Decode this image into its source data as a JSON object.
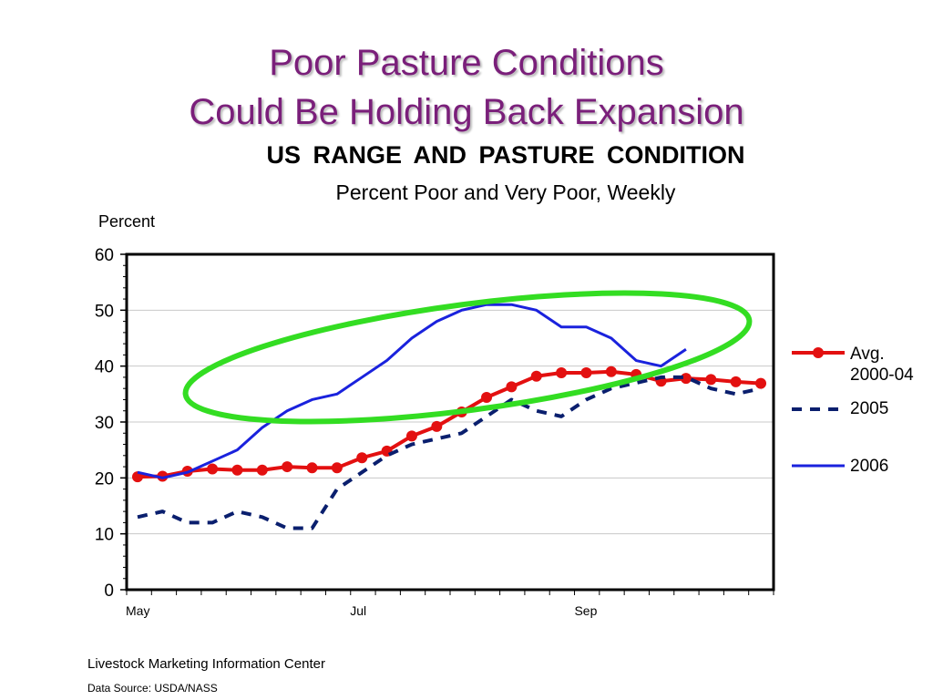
{
  "slide": {
    "title_line1": "Poor Pasture Conditions",
    "title_line2": "Could Be Holding Back Expansion"
  },
  "footer": {
    "source_org": "Livestock Marketing Information Center",
    "data_source": "Data Source:  USDA/NASS"
  },
  "chart_data": {
    "type": "line",
    "title": "US  RANGE  AND  PASTURE  CONDITION",
    "subtitle": "Percent Poor and Very Poor, Weekly",
    "ylabel": "Percent",
    "ylim": [
      0,
      60
    ],
    "yticks": [
      "0",
      "10",
      "20",
      "30",
      "40",
      "50",
      "60"
    ],
    "x_tick_labels": [
      {
        "label": "May",
        "week": 0
      },
      {
        "label": "Jul",
        "week": 9
      },
      {
        "label": "Sep",
        "week": 18
      }
    ],
    "num_weeks": 26,
    "grid": true,
    "legend_position": "right",
    "highlight_ellipse_color": "#33dd22",
    "series": [
      {
        "name": "Avg.\n2000-04",
        "color": "#e31010",
        "style": "solid-markers",
        "values": [
          20.2,
          20.3,
          21.2,
          21.6,
          21.4,
          21.4,
          22.0,
          21.8,
          21.8,
          23.6,
          24.8,
          27.5,
          29.2,
          31.8,
          34.4,
          36.3,
          38.2,
          38.8,
          38.8,
          39.0,
          38.5,
          37.3,
          37.8,
          37.6,
          37.2,
          36.9
        ]
      },
      {
        "name": "2005",
        "color": "#0a1f6e",
        "style": "dashed",
        "values": [
          13,
          14,
          12,
          12,
          14,
          13,
          11,
          11,
          18,
          21,
          24,
          26,
          27,
          28,
          31,
          34,
          32,
          31,
          34,
          36,
          37,
          38,
          38,
          36,
          35,
          36
        ]
      },
      {
        "name": "2006",
        "color": "#1a22dd",
        "style": "solid",
        "values": [
          21,
          20,
          21,
          23,
          25,
          29,
          32,
          34,
          35,
          38,
          41,
          45,
          48,
          50,
          51,
          51,
          50,
          47,
          47,
          45,
          41,
          40,
          43
        ]
      }
    ]
  }
}
